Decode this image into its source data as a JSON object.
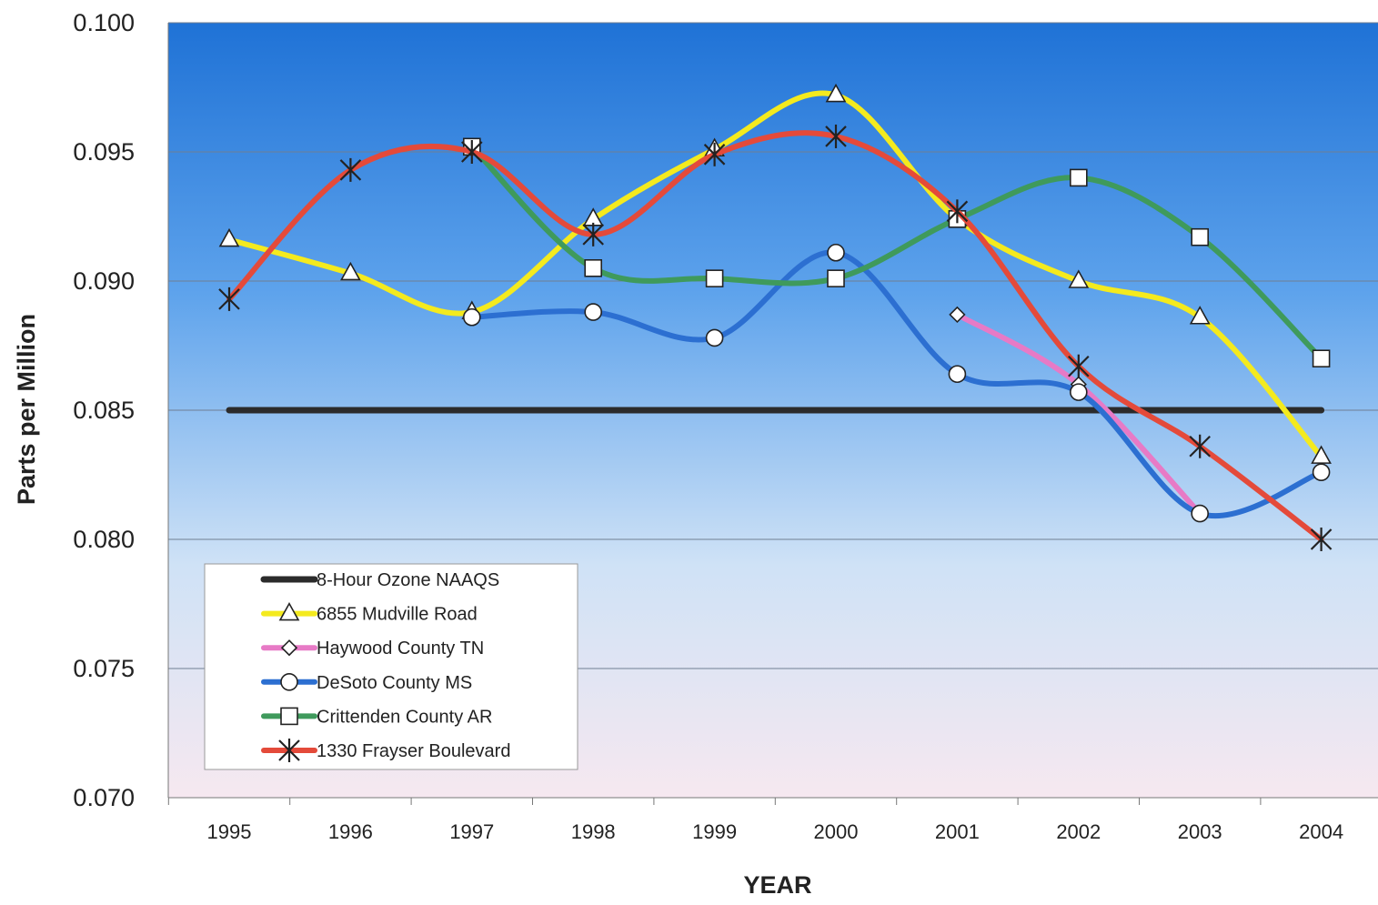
{
  "chart_data": {
    "type": "line",
    "title": "",
    "xlabel": "YEAR",
    "ylabel": "Parts per Million",
    "ylim": [
      0.07,
      0.1
    ],
    "yticks": [
      "0.070",
      "0.075",
      "0.080",
      "0.085",
      "0.090",
      "0.095",
      "0.100"
    ],
    "categories": [
      "1995",
      "1996",
      "1997",
      "1998",
      "1999",
      "2000",
      "2001",
      "2002",
      "2003",
      "2004"
    ],
    "grid": "horizontal",
    "legend_position": "bottom-left",
    "background": "gradient: blue top to white/pink bottom",
    "series": [
      {
        "name": "8-Hour Ozone NAAQS",
        "color": "#2b2b2b",
        "marker": "none",
        "values": [
          0.085,
          0.085,
          0.085,
          0.085,
          0.085,
          0.085,
          0.085,
          0.085,
          0.085,
          0.085
        ]
      },
      {
        "name": "6855 Mudville Road",
        "color": "#f4ea1e",
        "marker": "triangle",
        "values": [
          0.0916,
          0.0903,
          0.0888,
          0.0924,
          0.0951,
          0.0972,
          0.0924,
          0.09,
          0.0886,
          0.0832
        ]
      },
      {
        "name": "Haywood County TN",
        "color": "#e77ac6",
        "marker": "diamond",
        "values": [
          null,
          null,
          null,
          null,
          null,
          null,
          0.0887,
          0.086,
          0.081,
          null
        ]
      },
      {
        "name": "DeSoto County MS",
        "color": "#2c6fd1",
        "marker": "circle",
        "values": [
          null,
          null,
          0.0886,
          0.0888,
          0.0878,
          0.0911,
          0.0864,
          0.0857,
          0.081,
          0.0826
        ]
      },
      {
        "name": "Crittenden County AR",
        "color": "#3f9a5c",
        "marker": "square",
        "values": [
          null,
          null,
          0.0952,
          0.0905,
          0.0901,
          0.0901,
          0.0924,
          0.094,
          0.0917,
          0.087
        ]
      },
      {
        "name": "1330 Frayser Boulevard",
        "color": "#e44a3a",
        "marker": "asterisk",
        "values": [
          0.0893,
          0.0943,
          0.095,
          0.0918,
          0.0949,
          0.0956,
          0.0927,
          0.0867,
          0.0836,
          0.08
        ]
      }
    ]
  }
}
